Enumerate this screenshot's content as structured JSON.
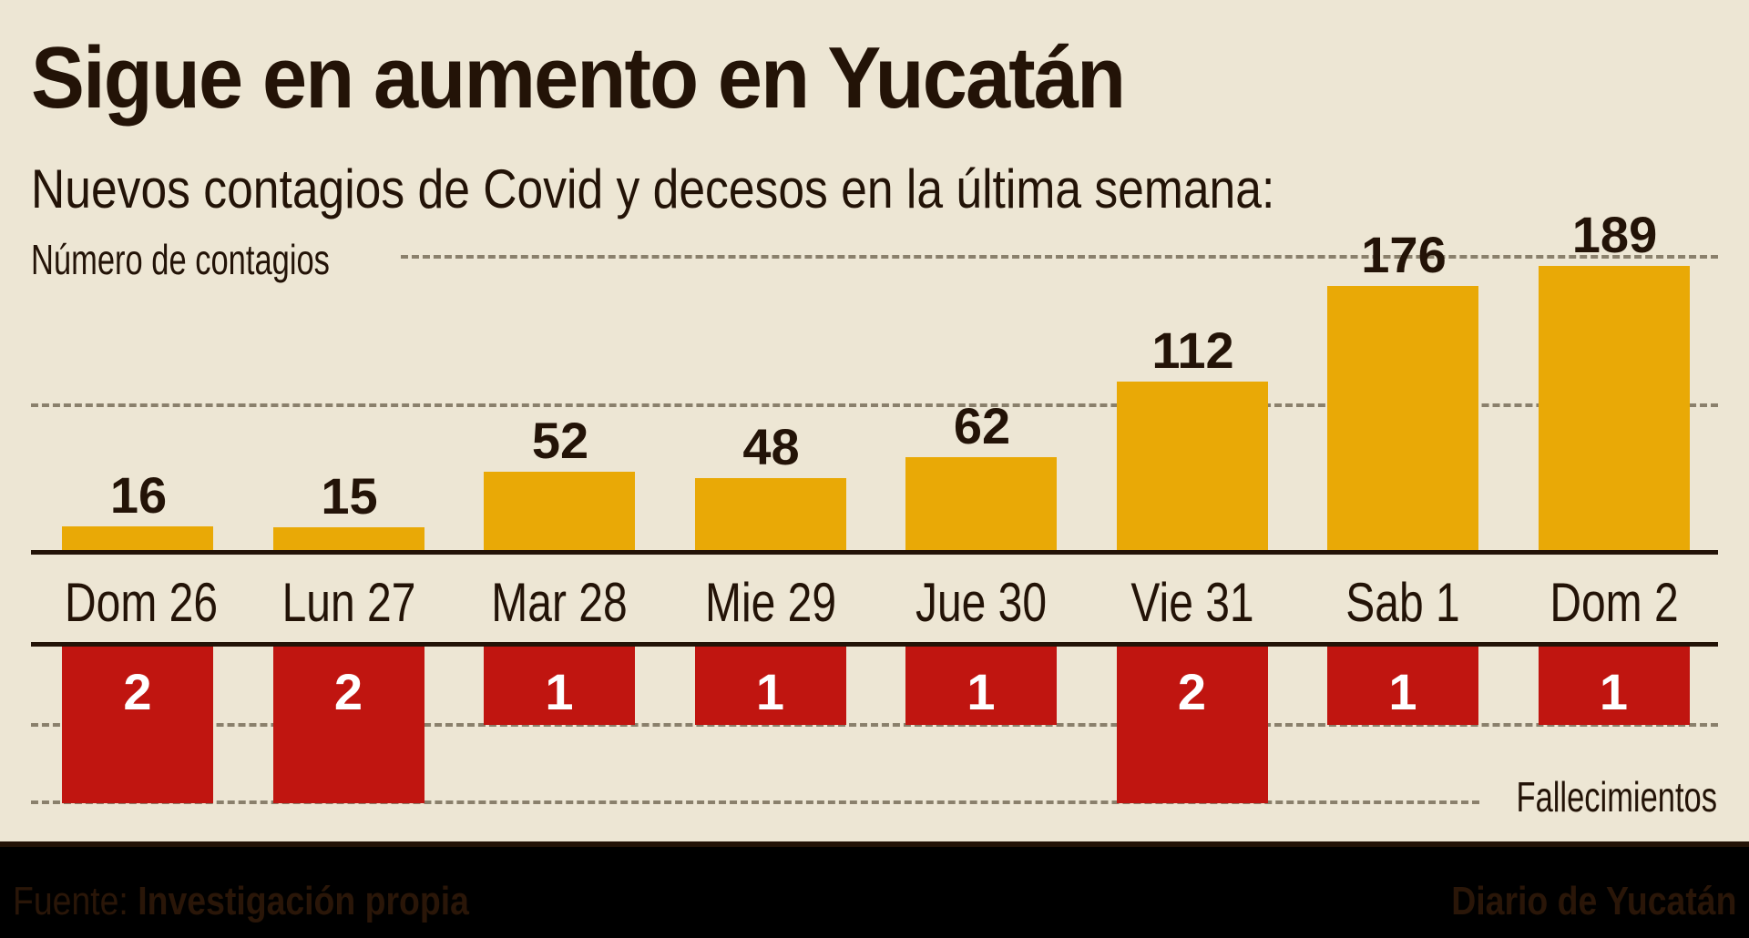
{
  "header": {
    "title": "Sigue en aumento en Yucatán",
    "subtitle": "Nuevos contagios de Covid y decesos en la última semana:"
  },
  "labels": {
    "contagios_axis": "Número de contagios",
    "fallecimientos_axis": "Fallecimientos"
  },
  "footer": {
    "source_prefix": "Fuente:",
    "source": "Investigación propia",
    "brand": "Diario de Yucatán"
  },
  "colors": {
    "background": "#ede6d4",
    "contagios": "#e9a906",
    "fallecimientos": "#c01510",
    "text": "#231307",
    "footer": "#000000"
  },
  "chart_data": {
    "type": "bar",
    "title": "Sigue en aumento en Yucatán",
    "subtitle": "Nuevos contagios de Covid y decesos en la última semana:",
    "categories": [
      "Dom 26",
      "Lun 27",
      "Mar 28",
      "Mie 29",
      "Jue 30",
      "Vie 31",
      "Sab 1",
      "Dom 2"
    ],
    "series": [
      {
        "name": "Número de contagios",
        "values": [
          16,
          15,
          52,
          48,
          62,
          112,
          176,
          189
        ],
        "color": "#e9a906",
        "direction": "up"
      },
      {
        "name": "Fallecimientos",
        "values": [
          2,
          2,
          1,
          1,
          1,
          2,
          1,
          1
        ],
        "color": "#c01510",
        "direction": "down"
      }
    ],
    "ylabel": "Número de contagios",
    "y2label": "Fallecimientos",
    "grid": true,
    "source": "Fuente: Investigación propia"
  }
}
